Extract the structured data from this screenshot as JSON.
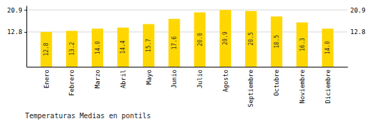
{
  "chart_data": {
    "type": "bar",
    "title": "Temperaturas Medias en pontils",
    "categories": [
      "Enero",
      "Febrero",
      "Marzo",
      "Abril",
      "Mayo",
      "Junio",
      "Julio",
      "Agosto",
      "Septiembre",
      "Octubre",
      "Noviembre",
      "Diciembre"
    ],
    "values": [
      12.8,
      13.2,
      14.0,
      14.4,
      15.7,
      17.6,
      20.0,
      20.9,
      20.5,
      18.5,
      16.3,
      14.0
    ],
    "value_labels": [
      "12.8",
      "13.2",
      "14.0",
      "14.4",
      "15.7",
      "17.6",
      "20.0",
      "20.9",
      "20.5",
      "18.5",
      "16.3",
      "14.0"
    ],
    "color": "#FFD700",
    "ylim": [
      0,
      22.5
    ],
    "yticks": [
      12.8,
      20.9
    ],
    "grid": true,
    "data_labels": true
  }
}
